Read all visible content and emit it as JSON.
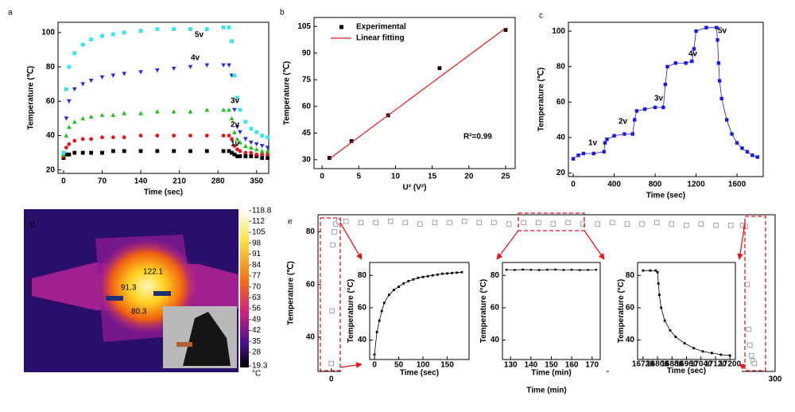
{
  "chart_data": [
    {
      "type": "scatter",
      "panel_label": "a",
      "xlabel": "Time (sec)",
      "ylabel": "Temperature (℃)",
      "x": [
        0,
        5,
        10,
        20,
        35,
        50,
        70,
        90,
        110,
        140,
        170,
        200,
        230,
        260,
        290,
        300,
        305,
        310,
        315,
        320,
        330,
        340,
        350,
        360,
        370
      ],
      "xlim": [
        -10,
        372
      ],
      "ylim": [
        18,
        106
      ],
      "xticks": [
        0,
        70,
        140,
        210,
        280,
        350
      ],
      "yticks": [
        20,
        40,
        60,
        80,
        100
      ],
      "series": [
        {
          "name": "1v",
          "color": "#000000",
          "marker": "square",
          "values": [
            27,
            29,
            29,
            30,
            30,
            30,
            30,
            31,
            31,
            31,
            31,
            31,
            31,
            31,
            31,
            31,
            30,
            29,
            28,
            28,
            28,
            28,
            28,
            27,
            27
          ]
        },
        {
          "name": "2v",
          "color": "#e8141c",
          "marker": "circle",
          "values": [
            28,
            33,
            35,
            37,
            38,
            38,
            39,
            39,
            39,
            40,
            40,
            40,
            40,
            40,
            40,
            40,
            38,
            34,
            32,
            31,
            30,
            30,
            29,
            29,
            29
          ]
        },
        {
          "name": "3v",
          "color": "#19c419",
          "marker": "triangle",
          "values": [
            29,
            40,
            45,
            48,
            50,
            51,
            52,
            52,
            53,
            53,
            54,
            54,
            54,
            55,
            55,
            55,
            50,
            42,
            38,
            36,
            34,
            33,
            32,
            31,
            31
          ]
        },
        {
          "name": "4v",
          "color": "#2b2bdc",
          "marker": "triangle-down",
          "values": [
            30,
            50,
            60,
            67,
            70,
            72,
            74,
            75,
            76,
            77,
            78,
            79,
            80,
            81,
            81,
            81,
            75,
            55,
            45,
            42,
            38,
            36,
            35,
            34,
            33
          ]
        },
        {
          "name": "5v",
          "color": "#33e6f0",
          "marker": "square",
          "values": [
            30,
            67,
            80,
            88,
            93,
            96,
            98,
            99,
            100,
            101,
            102,
            102,
            102,
            102,
            103,
            103,
            95,
            75,
            62,
            55,
            48,
            44,
            42,
            40,
            39
          ]
        }
      ]
    },
    {
      "type": "scatter",
      "panel_label": "b",
      "xlabel": "U² (V²)",
      "ylabel": "Temperature (℃)",
      "legend": "upper left",
      "annotation": "R²=0.99",
      "xlim": [
        -1.1,
        26.3
      ],
      "ylim": [
        25,
        110
      ],
      "xticks": [
        0,
        5,
        10,
        15,
        20,
        25
      ],
      "yticks": [
        30,
        45,
        60,
        75,
        90,
        105
      ],
      "series": [
        {
          "name": "Experimental",
          "color": "#000000",
          "marker": "square",
          "x": [
            1,
            4,
            9,
            16,
            25
          ],
          "values": [
            31,
            40.5,
            55,
            81.5,
            103
          ]
        },
        {
          "name": "Linear fitting",
          "color": "#e8141c",
          "style": "line",
          "x": [
            1,
            25
          ],
          "values": [
            30.5,
            104
          ]
        }
      ]
    },
    {
      "type": "scatter",
      "panel_label": "c",
      "xlabel": "Time (sec)",
      "ylabel": "Temperature (℃)",
      "annotations": [
        "1v",
        "2v",
        "3v",
        "4v",
        "5v"
      ],
      "x": [
        0,
        50,
        100,
        200,
        300,
        310,
        330,
        400,
        500,
        580,
        600,
        620,
        700,
        800,
        880,
        900,
        920,
        1000,
        1100,
        1160,
        1180,
        1200,
        1300,
        1400,
        1410,
        1420,
        1430,
        1450,
        1500,
        1550,
        1600,
        1650,
        1700,
        1750,
        1800
      ],
      "xlim": [
        -47,
        1856
      ],
      "ylim": [
        18,
        105
      ],
      "xticks": [
        0,
        400,
        800,
        1200,
        1600
      ],
      "yticks": [
        20,
        40,
        60,
        80,
        100
      ],
      "series": [
        {
          "color": "#1a1ae6",
          "marker": "square",
          "connect": true,
          "values": [
            28,
            30,
            31,
            31,
            32,
            37,
            39,
            41,
            42,
            42,
            50,
            55,
            56,
            57,
            57,
            70,
            80,
            82,
            82,
            83,
            90,
            100,
            102,
            102,
            95,
            82,
            72,
            62,
            50,
            42,
            37,
            34,
            32,
            30,
            29
          ]
        }
      ]
    },
    {
      "type": "image",
      "panel_label": "d",
      "colorbar_ticks": [
        118.8,
        112,
        105,
        98,
        91,
        84,
        77,
        70,
        63,
        56,
        49,
        42,
        35,
        28,
        19.3
      ],
      "colorbar_unit": "°C",
      "spot_labels": [
        91.3,
        122.1,
        80.3
      ]
    },
    {
      "type": "scatter",
      "panel_label": "e",
      "xlabel": "Time (min)",
      "ylabel": "Temperature (℃)",
      "x": [
        0,
        0.5,
        1,
        2,
        3,
        5,
        10,
        20,
        30,
        40,
        50,
        60,
        70,
        80,
        90,
        100,
        110,
        120,
        130,
        140,
        150,
        160,
        170,
        180,
        190,
        200,
        210,
        220,
        230,
        240,
        250,
        260,
        270,
        278,
        280,
        281,
        282,
        283,
        284,
        285,
        286
      ],
      "xlim": [
        -9,
        300
      ],
      "ylim": [
        27,
        86.5
      ],
      "xticks": [
        0,
        50,
        100,
        150,
        200,
        250,
        300
      ],
      "yticks": [
        40,
        60,
        80
      ],
      "series": [
        {
          "color": "#8c8c8c",
          "marker": "open-square",
          "values": [
            30,
            50,
            75,
            80,
            83,
            84,
            84,
            83.5,
            83.5,
            84,
            83.5,
            83,
            83.5,
            83.5,
            84,
            83.5,
            83.5,
            83,
            83.5,
            83.5,
            83,
            83.5,
            83,
            83,
            83.5,
            83,
            83,
            83.5,
            83,
            82.5,
            83,
            82.5,
            82.5,
            82.5,
            82,
            60,
            43,
            37,
            33,
            31,
            30
          ]
        }
      ]
    },
    {
      "type": "line",
      "xlabel": "Time (sec)",
      "ylabel": "Temperature (°C)",
      "x": [
        0,
        5,
        10,
        15,
        20,
        30,
        40,
        50,
        60,
        70,
        80,
        90,
        100,
        110,
        120,
        130,
        140,
        150,
        160,
        170,
        180
      ],
      "xlim": [
        -10,
        195
      ],
      "ylim": [
        28,
        88
      ],
      "xticks": [
        0,
        50,
        100,
        150
      ],
      "yticks": [
        40,
        60,
        80
      ],
      "series": [
        {
          "color": "#000000",
          "marker": "square",
          "connect": true,
          "values": [
            31,
            45,
            52,
            58,
            63,
            68,
            71,
            73,
            75,
            76.5,
            77.5,
            78.5,
            79,
            79.5,
            80,
            80.5,
            81,
            81.2,
            81.5,
            81.7,
            82
          ]
        }
      ]
    },
    {
      "type": "line",
      "xlabel": "Time (min)",
      "ylabel": "Temperature (°C)",
      "x": [
        128,
        132,
        136,
        140,
        144,
        148,
        152,
        156,
        160,
        164,
        168,
        172
      ],
      "xlim": [
        126,
        174
      ],
      "ylim": [
        28,
        88
      ],
      "xticks": [
        130,
        140,
        150,
        160,
        170
      ],
      "yticks": [
        40,
        60,
        80
      ],
      "series": [
        {
          "color": "#000000",
          "marker": "square",
          "connect": true,
          "values": [
            83.5,
            83.4,
            83.6,
            83.5,
            83.3,
            83.5,
            83.6,
            83.4,
            83.5,
            83.3,
            83.4,
            83.5
          ]
        }
      ]
    },
    {
      "type": "line",
      "xlabel": "Time (sec)",
      "ylabel": "Temperature (°C)",
      "x": [
        16720,
        16760,
        16790,
        16800,
        16805,
        16810,
        16820,
        16840,
        16870,
        16900,
        16950,
        17000,
        17050,
        17100,
        17150,
        17200
      ],
      "xlim": [
        16690,
        17230
      ],
      "ylim": [
        28,
        88
      ],
      "xticks": [
        16720,
        16800,
        16880,
        16960,
        17040,
        17120,
        17200
      ],
      "yticks": [
        40,
        60,
        80
      ],
      "series": [
        {
          "color": "#000000",
          "marker": "square",
          "connect": true,
          "values": [
            83,
            83,
            83,
            82,
            75,
            68,
            60,
            52,
            46,
            42,
            38,
            35,
            33,
            32,
            31,
            30.5
          ]
        }
      ]
    }
  ]
}
